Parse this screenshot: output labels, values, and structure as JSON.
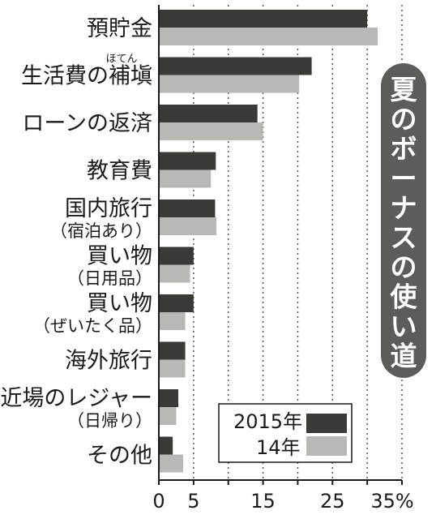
{
  "chart_data": {
    "type": "bar",
    "orientation": "horizontal",
    "title": "夏のボーナスの使い道",
    "categories": [
      {
        "label": "預貯金",
        "sub": "",
        "ruby": ""
      },
      {
        "label": "生活費の補塡",
        "sub": "",
        "ruby": "ほてん"
      },
      {
        "label": "ローンの返済",
        "sub": "",
        "ruby": ""
      },
      {
        "label": "教育費",
        "sub": "",
        "ruby": ""
      },
      {
        "label": "国内旅行",
        "sub": "（宿泊あり）",
        "ruby": ""
      },
      {
        "label": "買い物",
        "sub": "（日用品）",
        "ruby": ""
      },
      {
        "label": "買い物",
        "sub": "（ぜいたく品）",
        "ruby": ""
      },
      {
        "label": "海外旅行",
        "sub": "",
        "ruby": ""
      },
      {
        "label": "近場のレジャー",
        "sub": "（日帰り）",
        "ruby": ""
      },
      {
        "label": "その他",
        "sub": "",
        "ruby": ""
      }
    ],
    "series": [
      {
        "name": "2015年",
        "color": "#3a3a36",
        "values": [
          30,
          22,
          14.2,
          8.2,
          8.1,
          5,
          5,
          3.8,
          2.8,
          2
        ]
      },
      {
        "name": "14年",
        "color": "#b8b8b4",
        "values": [
          31.5,
          20.2,
          15,
          7.5,
          8.3,
          4.5,
          3.8,
          3.8,
          2.5,
          3.5
        ]
      }
    ],
    "xlim": [
      0,
      35
    ],
    "xticks": [
      "0",
      "5",
      "15",
      "25",
      "35%"
    ],
    "xtick_values": [
      0,
      5,
      15,
      25,
      35
    ],
    "gridline_values": [
      5,
      10,
      15,
      20,
      25,
      30,
      35
    ],
    "legend_position": "bottom-right"
  }
}
